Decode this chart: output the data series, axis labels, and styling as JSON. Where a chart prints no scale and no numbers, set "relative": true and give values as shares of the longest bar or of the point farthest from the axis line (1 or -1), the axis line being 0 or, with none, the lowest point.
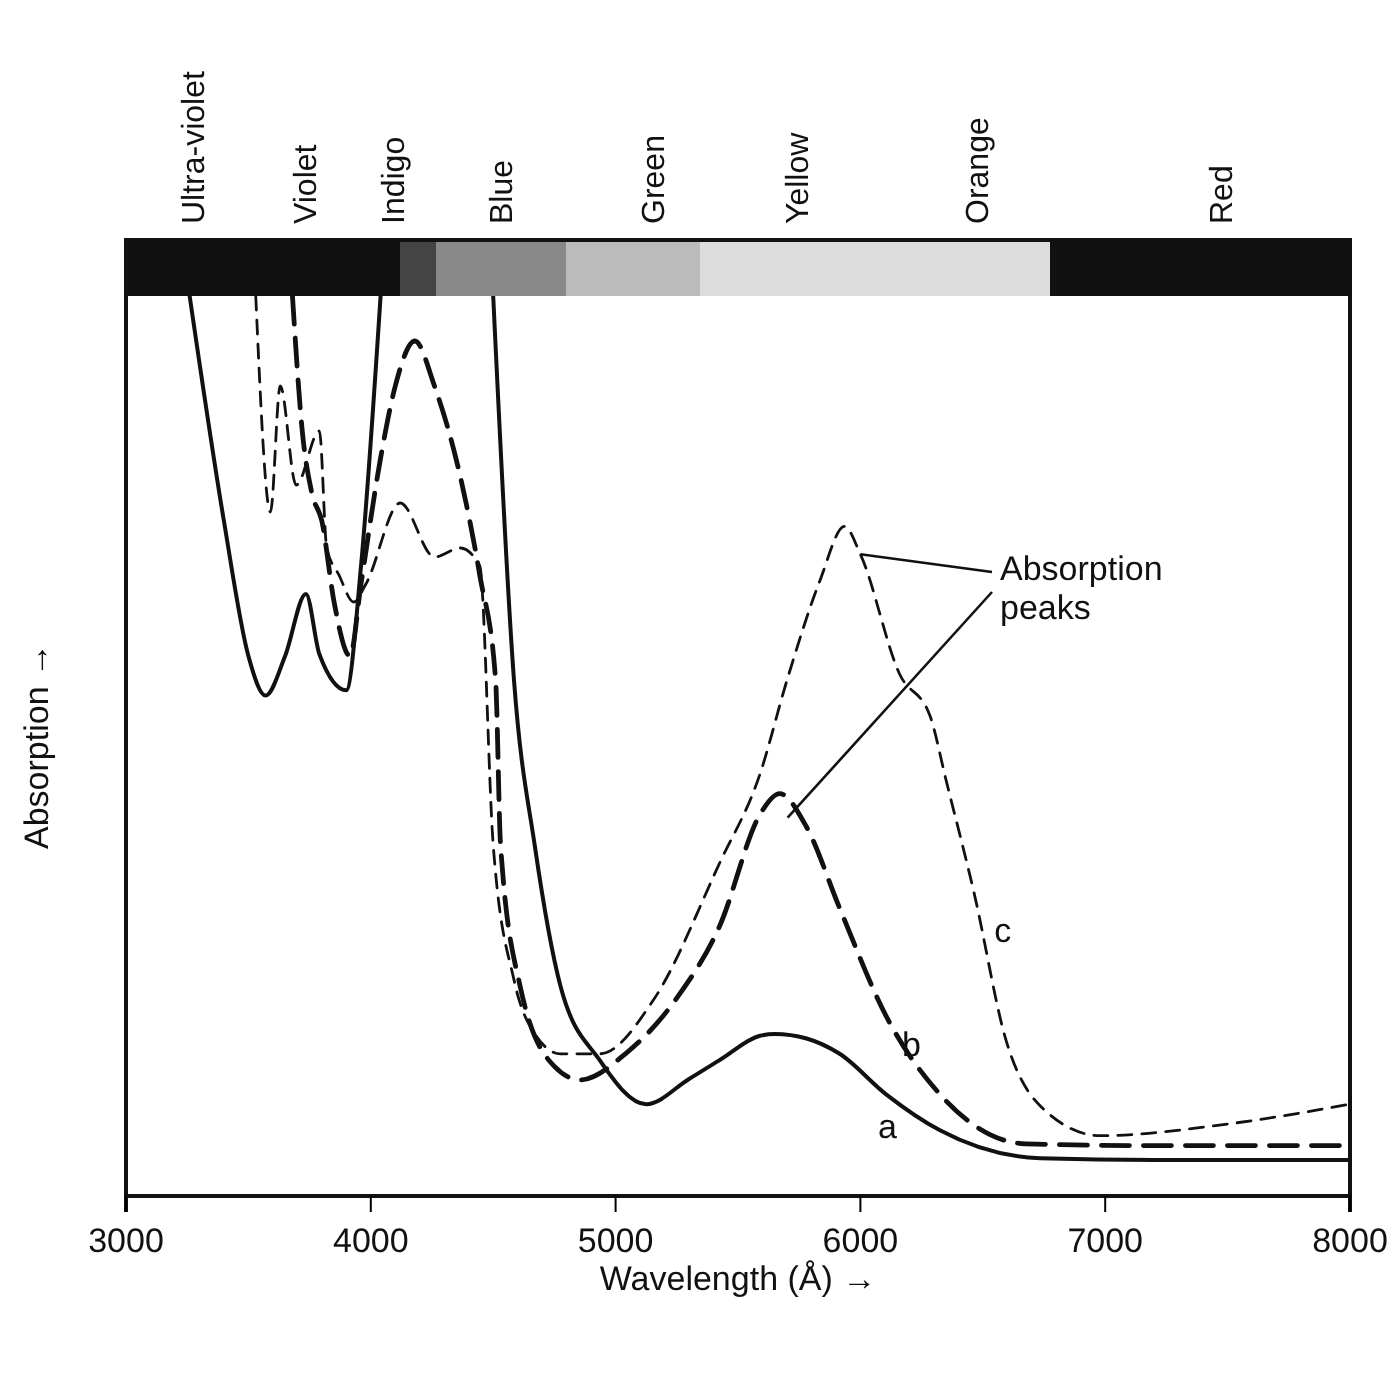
{
  "chart_data": {
    "type": "line",
    "relative": true,
    "xlabel": "Wavelength (Å) →",
    "ylabel": "Absorption →",
    "xlim": [
      3000,
      8000
    ],
    "xticks": [
      3000,
      4000,
      5000,
      6000,
      7000,
      8000
    ],
    "tick_labels": "x",
    "grid": false,
    "annotations": [
      {
        "text": "Absorption peaks",
        "x": 6000,
        "y": 0.713
      },
      "Ultra-violet",
      "Violet",
      "Indigo",
      "Blue",
      "Green",
      "Yellow",
      "Orange",
      "Red"
    ],
    "series": [
      {
        "name": "a",
        "color": "#111111",
        "line_style": "solid",
        "x": [
          3260,
          3400,
          3500,
          3570,
          3650,
          3735,
          3790,
          3900,
          3960,
          4040,
          4250,
          4500,
          4585,
          4670,
          4775,
          4935,
          5125,
          5300,
          5425,
          5590,
          5650,
          5780,
          5915,
          6105,
          6325,
          6735,
          7200,
          8000
        ],
        "values": [
          1,
          0.75,
          0.6,
          0.556,
          0.6,
          0.669,
          0.602,
          0.562,
          0.7,
          1,
          null,
          1,
          0.573,
          0.389,
          0.233,
          0.151,
          0.102,
          0.13,
          0.151,
          0.178,
          0.18,
          0.175,
          0.158,
          0.113,
          0.073,
          0.042,
          0.04,
          0.04
        ]
      },
      {
        "name": "b",
        "color": "#111111",
        "line_style": "dashed",
        "x": [
          3680,
          3720,
          3760,
          3800,
          3850,
          3915,
          3960,
          4040,
          4100,
          4180,
          4260,
          4365,
          4445,
          4510,
          4530,
          4610,
          4750,
          4855,
          5040,
          5250,
          5425,
          5590,
          5670,
          5780,
          5915,
          6105,
          6325,
          6675,
          7200,
          8000
        ],
        "values": [
          1,
          0.85,
          0.78,
          0.75,
          0.66,
          0.6,
          0.68,
          0.82,
          0.9,
          0.95,
          0.9,
          0.8,
          0.69,
          0.573,
          0.39,
          0.233,
          0.144,
          0.129,
          0.158,
          0.22,
          0.3,
          0.424,
          0.447,
          0.41,
          0.32,
          0.2,
          0.113,
          0.058,
          0.056,
          0.056
        ]
      },
      {
        "name": "c",
        "color": "#111111",
        "line_style": "dashed",
        "x": [
          3530,
          3590,
          3630,
          3695,
          3790,
          3820,
          3870,
          3930,
          3980,
          4120,
          4260,
          4365,
          4445,
          4500,
          4585,
          4670,
          4775,
          4935,
          5155,
          5425,
          5590,
          5700,
          5835,
          5935,
          6000,
          6160,
          6285,
          6350,
          6465,
          6595,
          6735,
          6980,
          7500,
          8000
        ],
        "values": [
          1,
          0.76,
          0.9,
          0.79,
          0.85,
          0.72,
          0.69,
          0.66,
          0.68,
          0.77,
          0.71,
          0.72,
          0.7,
          0.39,
          0.24,
          0.18,
          0.158,
          0.158,
          0.218,
          0.37,
          0.469,
          0.573,
          0.684,
          0.744,
          0.713,
          0.58,
          0.533,
          0.462,
          0.336,
          0.173,
          0.1,
          0.067,
          0.08,
          0.102
        ]
      }
    ]
  }
}
